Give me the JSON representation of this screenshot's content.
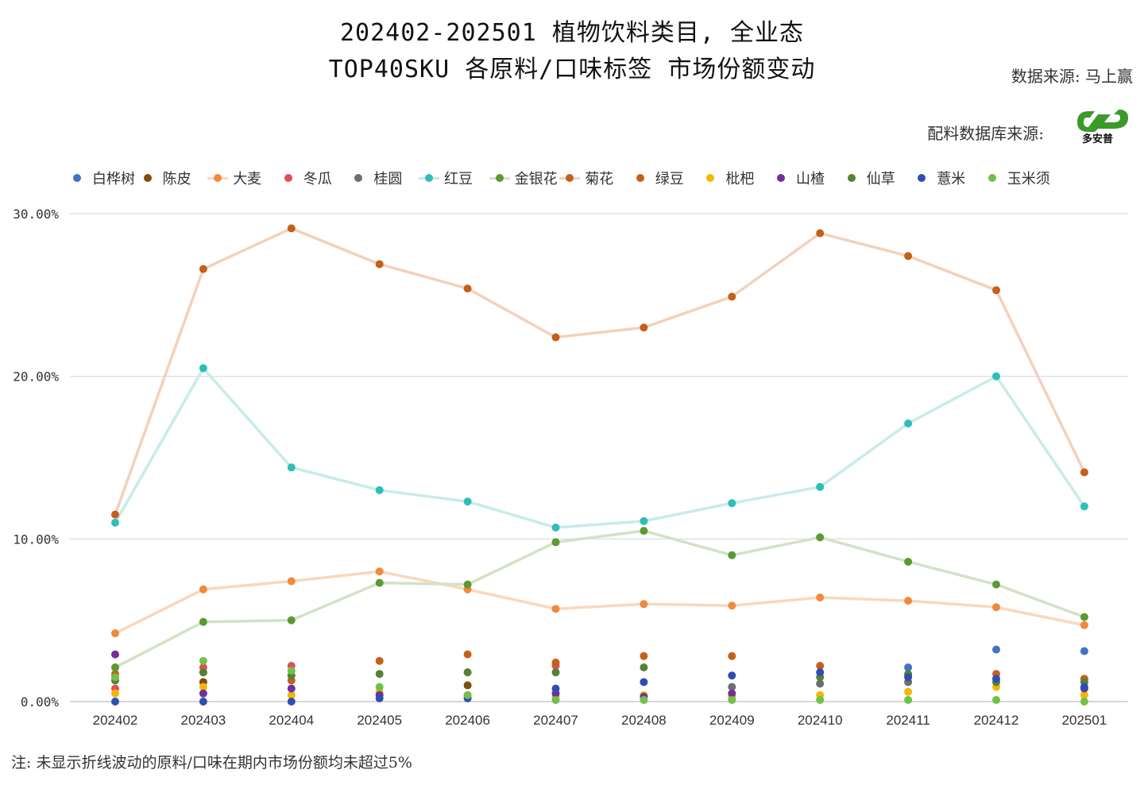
{
  "header": {
    "title_line1": "202402-202501 植物饮料类目, 全业态",
    "title_line2": "TOP40SKU 各原料/口味标签 市场份额变动",
    "source1": "数据来源: 马上赢",
    "source2": "配料数据库来源:",
    "logo_text": "多安普"
  },
  "footnote": "注: 未显示折线波动的原料/口味在期内市场份额均未超过5%",
  "chart_data": {
    "type": "line",
    "categories": [
      "202402",
      "202403",
      "202404",
      "202405",
      "202406",
      "202407",
      "202408",
      "202409",
      "202410",
      "202411",
      "202412",
      "202501"
    ],
    "y_ticks": [
      "0.00%",
      "10.00%",
      "20.00%",
      "30.00%"
    ],
    "ylim": [
      0,
      30
    ],
    "grid": true,
    "legend_position": "top",
    "series": [
      {
        "name": "白桦树",
        "color": "#4472c4",
        "line": false,
        "values": [
          null,
          null,
          null,
          null,
          null,
          null,
          null,
          null,
          null,
          2.1,
          3.2,
          3.1
        ]
      },
      {
        "name": "陈皮",
        "color": "#7f4f0e",
        "line": false,
        "values": [
          null,
          1.2,
          null,
          null,
          1.0,
          null,
          null,
          null,
          null,
          null,
          null,
          null
        ]
      },
      {
        "name": "大麦",
        "color": "#f08a3c",
        "line": true,
        "values": [
          4.2,
          6.9,
          7.4,
          8.0,
          6.9,
          5.7,
          6.0,
          5.9,
          6.4,
          6.2,
          5.8,
          4.7
        ]
      },
      {
        "name": "冬瓜",
        "color": "#e34d5a",
        "line": false,
        "values": [
          0.8,
          2.1,
          2.2,
          null,
          null,
          2.2,
          null,
          null,
          null,
          null,
          null,
          null
        ]
      },
      {
        "name": "桂圆",
        "color": "#6e6e6e",
        "line": false,
        "values": [
          null,
          null,
          null,
          null,
          null,
          null,
          null,
          0.9,
          1.1,
          1.2,
          null,
          null
        ]
      },
      {
        "name": "红豆",
        "color": "#2ebeb8",
        "line": true,
        "values": [
          11.0,
          20.5,
          14.4,
          13.0,
          12.3,
          10.7,
          11.1,
          12.2,
          13.2,
          17.1,
          20.0,
          12.0
        ]
      },
      {
        "name": "金银花",
        "color": "#5a9a32",
        "line": true,
        "values": [
          2.1,
          4.9,
          5.0,
          7.3,
          7.2,
          9.8,
          10.5,
          9.0,
          10.1,
          8.6,
          7.2,
          5.2
        ]
      },
      {
        "name": "菊花",
        "color": "#c5601a",
        "line": true,
        "values": [
          11.5,
          26.6,
          29.1,
          26.9,
          25.4,
          22.4,
          23.0,
          24.9,
          28.8,
          27.4,
          25.3,
          14.1
        ]
      },
      {
        "name": "绿豆",
        "color": "#c5601a",
        "line": false,
        "values": [
          1.7,
          1.8,
          1.3,
          2.5,
          2.9,
          2.4,
          2.8,
          2.8,
          2.2,
          1.6,
          1.7,
          1.4
        ]
      },
      {
        "name": "枇杷",
        "color": "#f2b705",
        "line": false,
        "values": [
          0.5,
          0.9,
          0.4,
          0.6,
          0.3,
          0.3,
          0.4,
          0.3,
          0.4,
          0.6,
          0.9,
          0.4
        ]
      },
      {
        "name": "山楂",
        "color": "#7030a0",
        "line": false,
        "values": [
          2.9,
          0.5,
          0.8,
          0.4,
          null,
          0.5,
          0.3,
          0.5,
          null,
          null,
          null,
          0.8
        ]
      },
      {
        "name": "仙草",
        "color": "#548235",
        "line": false,
        "values": [
          1.3,
          1.8,
          1.6,
          1.7,
          1.8,
          1.8,
          2.1,
          null,
          1.5,
          1.7,
          1.2,
          1.2
        ]
      },
      {
        "name": "薏米",
        "color": "#2f4fb0",
        "line": false,
        "values": [
          0.0,
          0.0,
          0.0,
          0.2,
          0.2,
          0.8,
          1.2,
          1.6,
          1.8,
          1.5,
          1.4,
          0.9
        ]
      },
      {
        "name": "玉米须",
        "color": "#70c04a",
        "line": false,
        "values": [
          1.5,
          2.5,
          1.9,
          0.9,
          0.4,
          0.1,
          0.1,
          0.1,
          0.1,
          0.1,
          0.1,
          0.0
        ]
      }
    ]
  }
}
